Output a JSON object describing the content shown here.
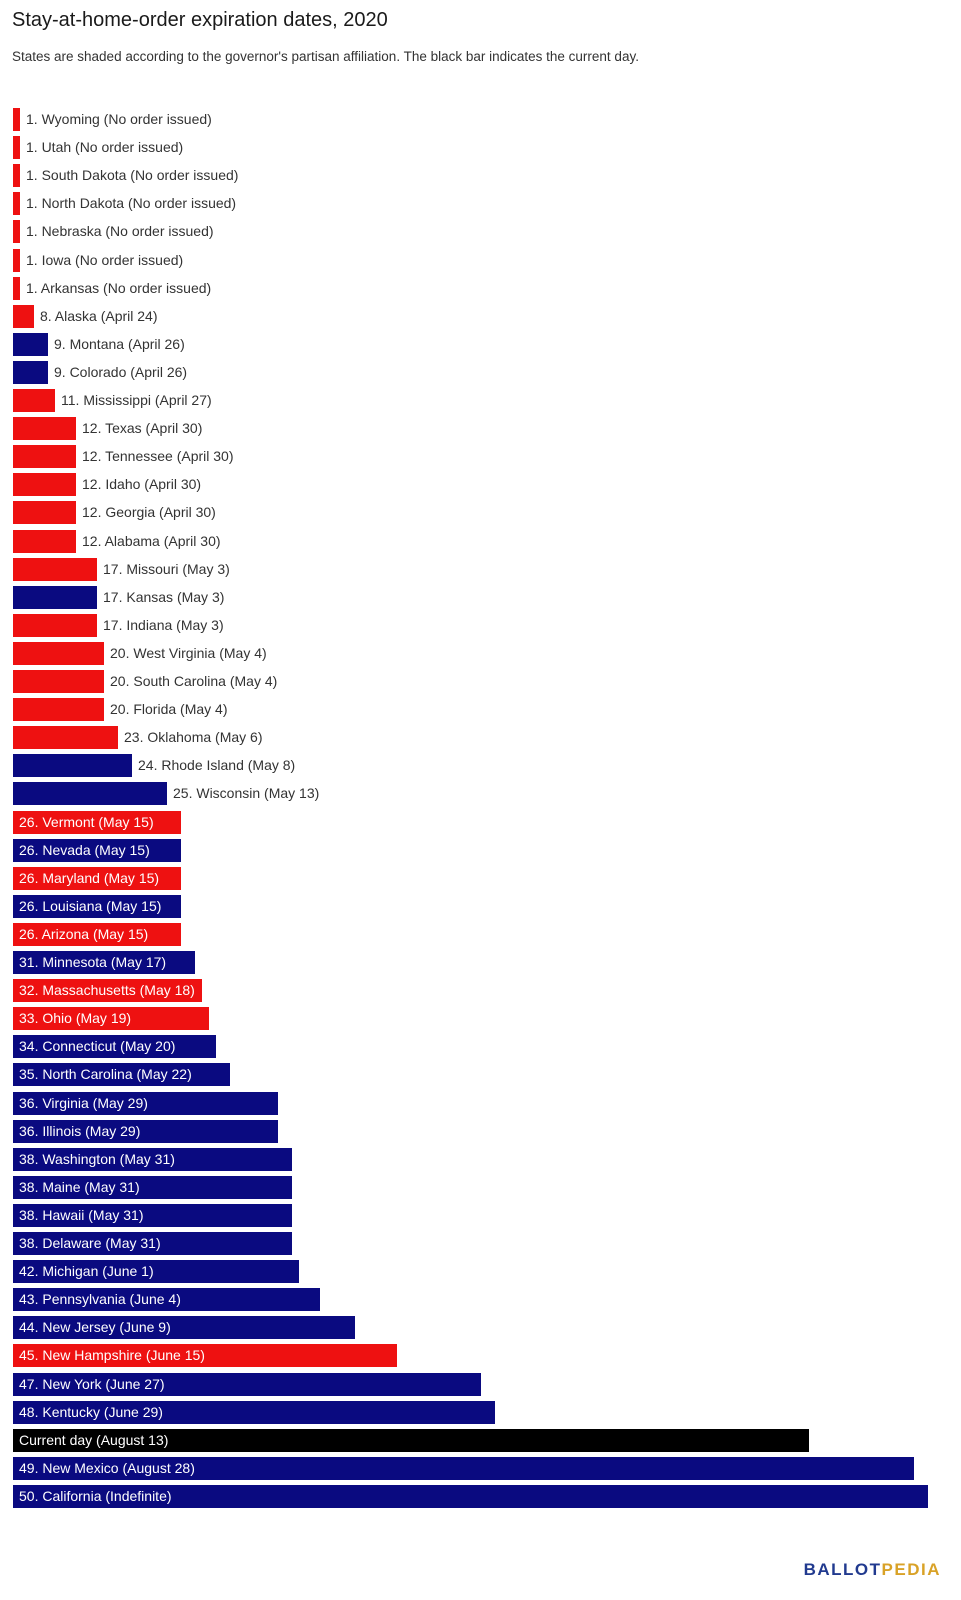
{
  "chart_data": {
    "type": "bar",
    "orientation": "horizontal",
    "title": "Stay-at-home-order expiration dates, 2020",
    "subtitle": "States are shaded according to the governor's partisan affiliation. The black bar indicates the current day.",
    "colors": {
      "republican": "#ee1111",
      "democratic": "#0a0a80",
      "current": "#000000"
    },
    "bars": [
      {
        "label": "1. Wyoming (No order issued)",
        "days": 0,
        "party": "republican"
      },
      {
        "label": "1. Utah (No order issued)",
        "days": 0,
        "party": "republican"
      },
      {
        "label": "1. South Dakota (No order issued)",
        "days": 0,
        "party": "republican"
      },
      {
        "label": "1. North Dakota (No order issued)",
        "days": 0,
        "party": "republican"
      },
      {
        "label": "1. Nebraska (No order issued)",
        "days": 0,
        "party": "republican"
      },
      {
        "label": "1. Iowa (No order issued)",
        "days": 0,
        "party": "republican"
      },
      {
        "label": "1. Arkansas (No order issued)",
        "days": 0,
        "party": "republican"
      },
      {
        "label": "8. Alaska (April 24)",
        "days": 2,
        "party": "republican"
      },
      {
        "label": "9. Montana (April 26)",
        "days": 4,
        "party": "democratic"
      },
      {
        "label": "9. Colorado (April 26)",
        "days": 4,
        "party": "democratic"
      },
      {
        "label": "11. Mississippi (April 27)",
        "days": 5,
        "party": "republican"
      },
      {
        "label": "12. Texas (April 30)",
        "days": 8,
        "party": "republican"
      },
      {
        "label": "12. Tennessee (April 30)",
        "days": 8,
        "party": "republican"
      },
      {
        "label": "12. Idaho (April 30)",
        "days": 8,
        "party": "republican"
      },
      {
        "label": "12. Georgia (April 30)",
        "days": 8,
        "party": "republican"
      },
      {
        "label": "12. Alabama (April 30)",
        "days": 8,
        "party": "republican"
      },
      {
        "label": "17. Missouri (May 3)",
        "days": 11,
        "party": "republican"
      },
      {
        "label": "17. Kansas (May 3)",
        "days": 11,
        "party": "democratic"
      },
      {
        "label": "17. Indiana (May 3)",
        "days": 11,
        "party": "republican"
      },
      {
        "label": "20. West Virginia (May 4)",
        "days": 12,
        "party": "republican"
      },
      {
        "label": "20. South Carolina (May 4)",
        "days": 12,
        "party": "republican"
      },
      {
        "label": "20. Florida (May 4)",
        "days": 12,
        "party": "republican"
      },
      {
        "label": "23. Oklahoma (May 6)",
        "days": 14,
        "party": "republican"
      },
      {
        "label": "24. Rhode Island (May 8)",
        "days": 16,
        "party": "democratic"
      },
      {
        "label": "25. Wisconsin (May 13)",
        "days": 21,
        "party": "democratic"
      },
      {
        "label": "26. Vermont (May 15)",
        "days": 23,
        "party": "republican"
      },
      {
        "label": "26. Nevada (May 15)",
        "days": 23,
        "party": "democratic"
      },
      {
        "label": "26. Maryland (May 15)",
        "days": 23,
        "party": "republican"
      },
      {
        "label": "26. Louisiana (May 15)",
        "days": 23,
        "party": "democratic"
      },
      {
        "label": "26. Arizona (May 15)",
        "days": 23,
        "party": "republican"
      },
      {
        "label": "31. Minnesota (May 17)",
        "days": 25,
        "party": "democratic"
      },
      {
        "label": "32. Massachusetts (May 18)",
        "days": 26,
        "party": "republican"
      },
      {
        "label": "33. Ohio (May 19)",
        "days": 27,
        "party": "republican"
      },
      {
        "label": "34. Connecticut (May 20)",
        "days": 28,
        "party": "democratic"
      },
      {
        "label": "35. North Carolina (May 22)",
        "days": 30,
        "party": "democratic"
      },
      {
        "label": "36. Virginia (May 29)",
        "days": 37,
        "party": "democratic"
      },
      {
        "label": "36. Illinois (May 29)",
        "days": 37,
        "party": "democratic"
      },
      {
        "label": "38. Washington (May 31)",
        "days": 39,
        "party": "democratic"
      },
      {
        "label": "38. Maine (May 31)",
        "days": 39,
        "party": "democratic"
      },
      {
        "label": "38. Hawaii (May 31)",
        "days": 39,
        "party": "democratic"
      },
      {
        "label": "38. Delaware (May 31)",
        "days": 39,
        "party": "democratic"
      },
      {
        "label": "42. Michigan (June 1)",
        "days": 40,
        "party": "democratic"
      },
      {
        "label": "43. Pennsylvania (June 4)",
        "days": 43,
        "party": "democratic"
      },
      {
        "label": "44. New Jersey (June 9)",
        "days": 48,
        "party": "democratic"
      },
      {
        "label": "45. New Hampshire (June 15)",
        "days": 54,
        "party": "republican"
      },
      {
        "label": "47. New York (June 27)",
        "days": 66,
        "party": "democratic"
      },
      {
        "label": "48. Kentucky (June 29)",
        "days": 68,
        "party": "democratic"
      },
      {
        "label": "Current day (August 13)",
        "days": 113,
        "party": "current"
      },
      {
        "label": "49. New Mexico (August 28)",
        "days": 128,
        "party": "democratic"
      },
      {
        "label": "50. California (Indefinite)",
        "days": 130,
        "party": "democratic"
      }
    ]
  },
  "brand": {
    "part1": "BALLOT",
    "part2": "PEDIA"
  }
}
